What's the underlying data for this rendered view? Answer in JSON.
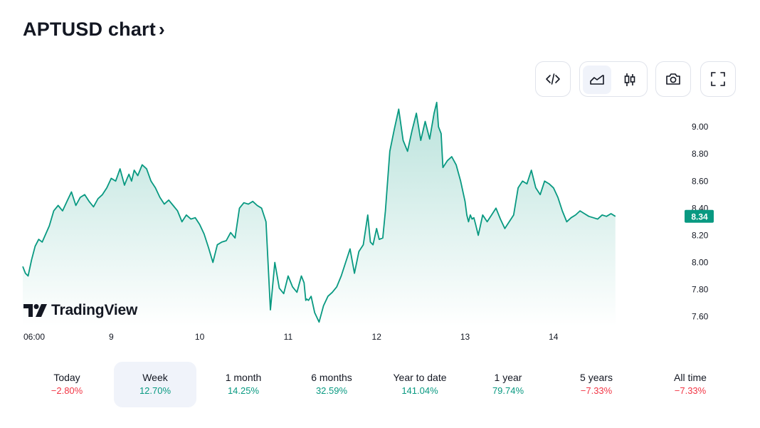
{
  "header": {
    "title": "APTUSD chart",
    "chevron": "›"
  },
  "toolbar": {
    "embed_icon": "code-icon",
    "chart_type_area_icon": "area-chart-icon",
    "chart_type_candles_icon": "candlestick-icon",
    "snapshot_icon": "camera-icon",
    "fullscreen_icon": "fullscreen-icon",
    "active_chart_type": "area"
  },
  "colors": {
    "line": "#089981",
    "positive": "#089981",
    "negative": "#f23645",
    "price_label_bg": "#089981"
  },
  "watermark": {
    "text": "TradingView"
  },
  "chart_data": {
    "type": "area",
    "symbol": "APTUSD",
    "last_price": "8.34",
    "x_tick_labels": [
      "06:00",
      "9",
      "10",
      "11",
      "12",
      "13",
      "14"
    ],
    "y_tick_labels": [
      "7.60",
      "7.80",
      "8.00",
      "8.20",
      "8.40",
      "8.60",
      "8.80",
      "9.00"
    ],
    "ylim": [
      7.53,
      9.2
    ],
    "x_days": [
      8.0,
      15.45
    ],
    "x": [
      8.0,
      8.03,
      8.06,
      8.1,
      8.14,
      8.18,
      8.22,
      8.26,
      8.3,
      8.35,
      8.4,
      8.45,
      8.5,
      8.55,
      8.6,
      8.65,
      8.7,
      8.75,
      8.8,
      8.85,
      8.9,
      8.95,
      9.0,
      9.05,
      9.1,
      9.15,
      9.18,
      9.2,
      9.23,
      9.26,
      9.3,
      9.35,
      9.4,
      9.45,
      9.5,
      9.55,
      9.6,
      9.65,
      9.7,
      9.75,
      9.8,
      9.85,
      9.9,
      9.95,
      10.0,
      10.05,
      10.1,
      10.15,
      10.2,
      10.25,
      10.3,
      10.35,
      10.4,
      10.45,
      10.5,
      10.55,
      10.6,
      10.65,
      10.7,
      10.75,
      10.8,
      10.85,
      10.9,
      10.95,
      11.0,
      11.05,
      11.1,
      11.15,
      11.18,
      11.2,
      11.21,
      11.23,
      11.26,
      11.3,
      11.35,
      11.4,
      11.45,
      11.5,
      11.55,
      11.6,
      11.65,
      11.7,
      11.75,
      11.8,
      11.85,
      11.9,
      11.93,
      11.96,
      12.0,
      12.03,
      12.07,
      12.1,
      12.15,
      12.2,
      12.25,
      12.3,
      12.35,
      12.4,
      12.45,
      12.5,
      12.55,
      12.6,
      12.65,
      12.68,
      12.7,
      12.73,
      12.75,
      12.8,
      12.85,
      12.9,
      12.95,
      13.0,
      13.02,
      13.04,
      13.06,
      13.08,
      13.1,
      13.12,
      13.15,
      13.2,
      13.25,
      13.3,
      13.35,
      13.4,
      13.45,
      13.5,
      13.55,
      13.6,
      13.65,
      13.7,
      13.75,
      13.8,
      13.85,
      13.9,
      13.95,
      14.0,
      14.05,
      14.1,
      14.15,
      14.2,
      14.25,
      14.3,
      14.35,
      14.4,
      14.45,
      14.5,
      14.55,
      14.6,
      14.65,
      14.7
    ],
    "values": [
      7.97,
      7.92,
      7.9,
      8.02,
      8.12,
      8.17,
      8.15,
      8.21,
      8.27,
      8.38,
      8.42,
      8.38,
      8.45,
      8.52,
      8.42,
      8.48,
      8.5,
      8.45,
      8.41,
      8.47,
      8.5,
      8.55,
      8.62,
      8.6,
      8.69,
      8.57,
      8.62,
      8.65,
      8.6,
      8.68,
      8.64,
      8.72,
      8.69,
      8.6,
      8.55,
      8.48,
      8.43,
      8.46,
      8.42,
      8.38,
      8.3,
      8.35,
      8.32,
      8.33,
      8.28,
      8.21,
      8.11,
      8.0,
      8.13,
      8.15,
      8.16,
      8.22,
      8.18,
      8.4,
      8.44,
      8.43,
      8.45,
      8.42,
      8.4,
      8.3,
      7.65,
      8.0,
      7.81,
      7.77,
      7.9,
      7.82,
      7.78,
      7.9,
      7.85,
      7.72,
      7.73,
      7.72,
      7.75,
      7.63,
      7.56,
      7.68,
      7.75,
      7.78,
      7.82,
      7.9,
      8.0,
      8.1,
      7.92,
      8.08,
      8.13,
      8.35,
      8.15,
      8.13,
      8.25,
      8.17,
      8.18,
      8.38,
      8.82,
      8.98,
      9.13,
      8.9,
      8.82,
      8.97,
      9.1,
      8.9,
      9.04,
      8.91,
      9.1,
      9.18,
      9.0,
      8.95,
      8.7,
      8.75,
      8.78,
      8.72,
      8.6,
      8.45,
      8.35,
      8.3,
      8.35,
      8.32,
      8.33,
      8.28,
      8.2,
      8.35,
      8.3,
      8.35,
      8.4,
      8.32,
      8.25,
      8.3,
      8.35,
      8.55,
      8.6,
      8.58,
      8.68,
      8.55,
      8.5,
      8.6,
      8.58,
      8.55,
      8.48,
      8.38,
      8.3,
      8.33,
      8.35,
      8.38,
      8.36,
      8.34,
      8.33,
      8.32,
      8.35,
      8.34,
      8.36,
      8.34
    ]
  },
  "periods": [
    {
      "label": "Today",
      "value": "−2.80%",
      "trend": "neg"
    },
    {
      "label": "Week",
      "value": "12.70%",
      "trend": "pos",
      "active": true
    },
    {
      "label": "1 month",
      "value": "14.25%",
      "trend": "pos"
    },
    {
      "label": "6 months",
      "value": "32.59%",
      "trend": "pos"
    },
    {
      "label": "Year to date",
      "value": "141.04%",
      "trend": "pos"
    },
    {
      "label": "1 year",
      "value": "79.74%",
      "trend": "pos"
    },
    {
      "label": "5 years",
      "value": "−7.33%",
      "trend": "neg"
    },
    {
      "label": "All time",
      "value": "−7.33%",
      "trend": "neg"
    }
  ]
}
